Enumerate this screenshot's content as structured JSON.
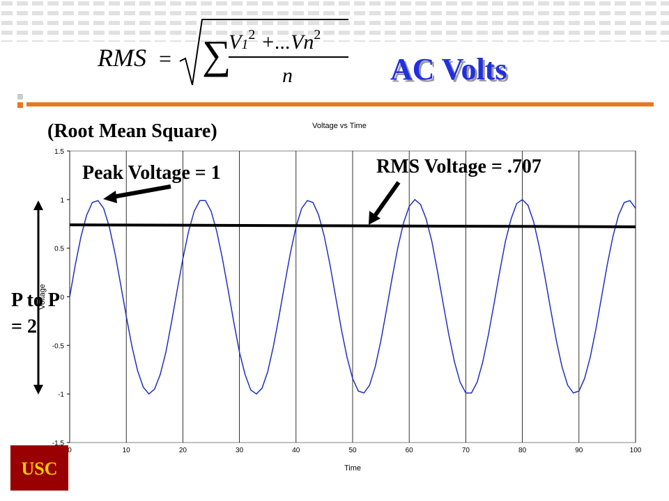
{
  "slide": {
    "title": "AC Volts",
    "subtitle": "(Root Mean Square)",
    "formula": {
      "lhs": "RMS",
      "equals": "=",
      "sum": "∑",
      "v1": "V",
      "sub1": "1",
      "sq1": "2",
      "mid": "+...Vn",
      "sq2": "2",
      "denominator": "n"
    },
    "peak_label": "Peak Voltage = 1",
    "rms_label": "RMS Voltage = .707",
    "p2p_label": [
      "P to P",
      "= 2"
    ],
    "logo": "USC"
  },
  "chart_data": {
    "type": "line",
    "title": "Voltage vs Time",
    "xlabel": "Time",
    "ylabel": "Voltage",
    "xlim": [
      0,
      100
    ],
    "ylim": [
      -1.5,
      1.5
    ],
    "xticks": [
      0,
      10,
      20,
      30,
      40,
      50,
      60,
      70,
      80,
      90,
      100
    ],
    "yticks": [
      -1.5,
      -1,
      -0.5,
      0,
      0.5,
      1,
      1.5
    ],
    "grid": "x",
    "series": [
      {
        "color": "#1f2fbf",
        "x": [
          0,
          1,
          2,
          3,
          4,
          5,
          6,
          7,
          8,
          9,
          10,
          11,
          12,
          13,
          14,
          15,
          16,
          17,
          18,
          19,
          20,
          21,
          22,
          23,
          24,
          25,
          26,
          27,
          28,
          29,
          30,
          31,
          32,
          33,
          34,
          35,
          36,
          37,
          38,
          39,
          40,
          41,
          42,
          43,
          44,
          45,
          46,
          47,
          48,
          49,
          50,
          51,
          52,
          53,
          54,
          55,
          56,
          57,
          58,
          59,
          60,
          61,
          62,
          63,
          64,
          65,
          66,
          67,
          68,
          69,
          70,
          71,
          72,
          73,
          74,
          75,
          76,
          77,
          78,
          79,
          80,
          81,
          82,
          83,
          84,
          85,
          86,
          87,
          88,
          89,
          90,
          91,
          92,
          93,
          94,
          95,
          96,
          97,
          98,
          99,
          100
        ],
        "values": [
          0,
          0.33,
          0.62,
          0.84,
          0.97,
          0.99,
          0.91,
          0.72,
          0.45,
          0.13,
          -0.2,
          -0.51,
          -0.76,
          -0.93,
          -1,
          -0.95,
          -0.8,
          -0.57,
          -0.26,
          0.07,
          0.39,
          0.67,
          0.88,
          0.99,
          0.99,
          0.88,
          0.67,
          0.39,
          0.07,
          -0.26,
          -0.57,
          -0.8,
          -0.96,
          -1,
          -0.94,
          -0.77,
          -0.51,
          -0.2,
          0.13,
          0.45,
          0.72,
          0.91,
          0.99,
          0.97,
          0.84,
          0.62,
          0.33,
          0,
          -0.33,
          -0.62,
          -0.84,
          -0.97,
          -0.99,
          -0.91,
          -0.72,
          -0.45,
          -0.13,
          0.2,
          0.51,
          0.76,
          0.93,
          1,
          0.95,
          0.8,
          0.57,
          0.26,
          -0.07,
          -0.39,
          -0.67,
          -0.88,
          -0.99,
          -0.99,
          -0.88,
          -0.67,
          -0.39,
          -0.07,
          0.26,
          0.57,
          0.8,
          0.96,
          1,
          0.94,
          0.77,
          0.51,
          0.2,
          -0.13,
          -0.45,
          -0.72,
          -0.91,
          -0.99,
          -0.97,
          -0.84,
          -0.62,
          -0.33,
          0,
          0.33,
          0.62,
          0.84,
          0.97,
          0.99,
          0.91
        ]
      },
      {
        "color": "#000000",
        "x": [
          0,
          100
        ],
        "values": [
          0.74,
          0.72
        ]
      }
    ]
  }
}
